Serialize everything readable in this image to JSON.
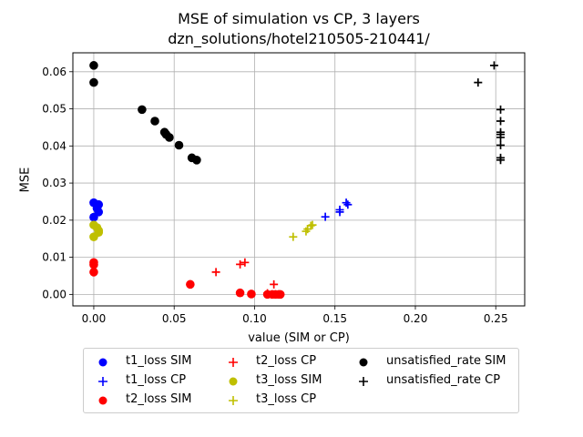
{
  "chart_data": {
    "type": "scatter",
    "title": "MSE of simulation vs CP, 3 layers",
    "subtitle": "dzn_solutions/hotel210505-210441/",
    "xlabel": "value (SIM or CP)",
    "ylabel": "MSE",
    "xlim": [
      -0.013,
      0.268
    ],
    "ylim": [
      -0.0031,
      0.0651
    ],
    "xticks": [
      "0.00",
      "0.05",
      "0.10",
      "0.15",
      "0.20",
      "0.25"
    ],
    "xtick_values": [
      0.0,
      0.05,
      0.1,
      0.15,
      0.2,
      0.25
    ],
    "yticks": [
      "0.00",
      "0.01",
      "0.02",
      "0.03",
      "0.04",
      "0.05",
      "0.06"
    ],
    "ytick_values": [
      0.0,
      0.01,
      0.02,
      0.03,
      0.04,
      0.05,
      0.06
    ],
    "grid": true,
    "legend_position": "below",
    "series": [
      {
        "name": "t1_loss SIM",
        "color": "#0000ff",
        "marker": "circle",
        "points": [
          [
            0.0,
            0.0247
          ],
          [
            0.003,
            0.0242
          ],
          [
            0.0,
            0.0208
          ],
          [
            0.002,
            0.0232
          ],
          [
            0.003,
            0.0222
          ]
        ]
      },
      {
        "name": "t1_loss CP",
        "color": "#0000ff",
        "marker": "plus",
        "points": [
          [
            0.144,
            0.0209
          ],
          [
            0.153,
            0.0228
          ],
          [
            0.153,
            0.0222
          ],
          [
            0.157,
            0.0247
          ],
          [
            0.158,
            0.0242
          ]
        ]
      },
      {
        "name": "t2_loss SIM",
        "color": "#ff0000",
        "marker": "circle",
        "points": [
          [
            0.0,
            0.0086
          ],
          [
            0.0,
            0.008
          ],
          [
            0.0,
            0.006
          ],
          [
            0.06,
            0.0027
          ],
          [
            0.091,
            0.0004
          ],
          [
            0.098,
            0.0001
          ],
          [
            0.108,
            0.0
          ],
          [
            0.111,
            0.0
          ],
          [
            0.113,
            0.0
          ],
          [
            0.115,
            0.0
          ],
          [
            0.116,
            0.0
          ]
        ]
      },
      {
        "name": "t2_loss CP",
        "color": "#ff0000",
        "marker": "plus",
        "points": [
          [
            0.076,
            0.006
          ],
          [
            0.091,
            0.0081
          ],
          [
            0.094,
            0.0086
          ],
          [
            0.112,
            0.0027
          ],
          [
            0.108,
            0.0003
          ],
          [
            0.111,
            0.0
          ],
          [
            0.113,
            0.0
          ],
          [
            0.115,
            0.0
          ],
          [
            0.116,
            0.0
          ]
        ]
      },
      {
        "name": "t3_loss SIM",
        "color": "#bfbf00",
        "marker": "circle",
        "points": [
          [
            0.0,
            0.0187
          ],
          [
            0.002,
            0.018
          ],
          [
            0.003,
            0.0172
          ],
          [
            0.003,
            0.0167
          ],
          [
            0.0,
            0.0155
          ]
        ]
      },
      {
        "name": "t3_loss CP",
        "color": "#bfbf00",
        "marker": "plus",
        "points": [
          [
            0.124,
            0.0155
          ],
          [
            0.132,
            0.017
          ],
          [
            0.133,
            0.0176
          ],
          [
            0.135,
            0.0185
          ],
          [
            0.136,
            0.0187
          ]
        ]
      },
      {
        "name": "unsatisfied_rate SIM",
        "color": "#000000",
        "marker": "circle",
        "points": [
          [
            0.0,
            0.0617
          ],
          [
            0.0,
            0.0571
          ],
          [
            0.03,
            0.0498
          ],
          [
            0.038,
            0.0467
          ],
          [
            0.044,
            0.0437
          ],
          [
            0.045,
            0.0431
          ],
          [
            0.047,
            0.0423
          ],
          [
            0.053,
            0.0402
          ],
          [
            0.061,
            0.0368
          ],
          [
            0.064,
            0.0362
          ]
        ]
      },
      {
        "name": "unsatisfied_rate CP",
        "color": "#000000",
        "marker": "plus",
        "points": [
          [
            0.249,
            0.0617
          ],
          [
            0.239,
            0.0571
          ],
          [
            0.253,
            0.0498
          ],
          [
            0.253,
            0.0467
          ],
          [
            0.253,
            0.0437
          ],
          [
            0.253,
            0.0431
          ],
          [
            0.253,
            0.0423
          ],
          [
            0.253,
            0.0402
          ],
          [
            0.253,
            0.0368
          ],
          [
            0.253,
            0.0362
          ]
        ]
      }
    ]
  }
}
